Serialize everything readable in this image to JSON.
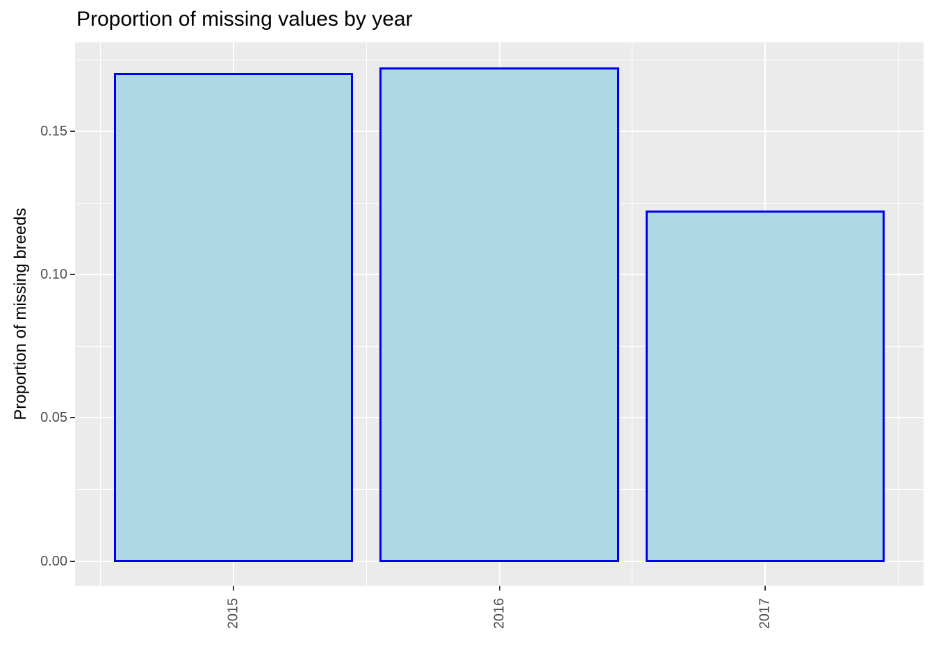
{
  "chart_data": {
    "type": "bar",
    "title": "Proportion of missing values by year",
    "xlabel": "",
    "ylabel": "Proportion of missing breeds",
    "categories": [
      "2015",
      "2016",
      "2017"
    ],
    "values": [
      0.17,
      0.172,
      0.122
    ],
    "yticks": [
      0,
      0.05,
      0.1,
      0.15
    ],
    "ytick_labels": [
      "0.00",
      "0.05",
      "0.10",
      "0.15"
    ],
    "ylim": [
      -0.0086,
      0.1811
    ],
    "grid": true,
    "legend": false,
    "bar_fill": "#ADD8E6",
    "bar_stroke": "#0000EE",
    "panel_bg": "#EBEBEB",
    "grid_color": "#FFFFFF",
    "tick_mark_color": "#333333",
    "axis_text_color": "#4D4D4D",
    "title_color": "#000000"
  }
}
